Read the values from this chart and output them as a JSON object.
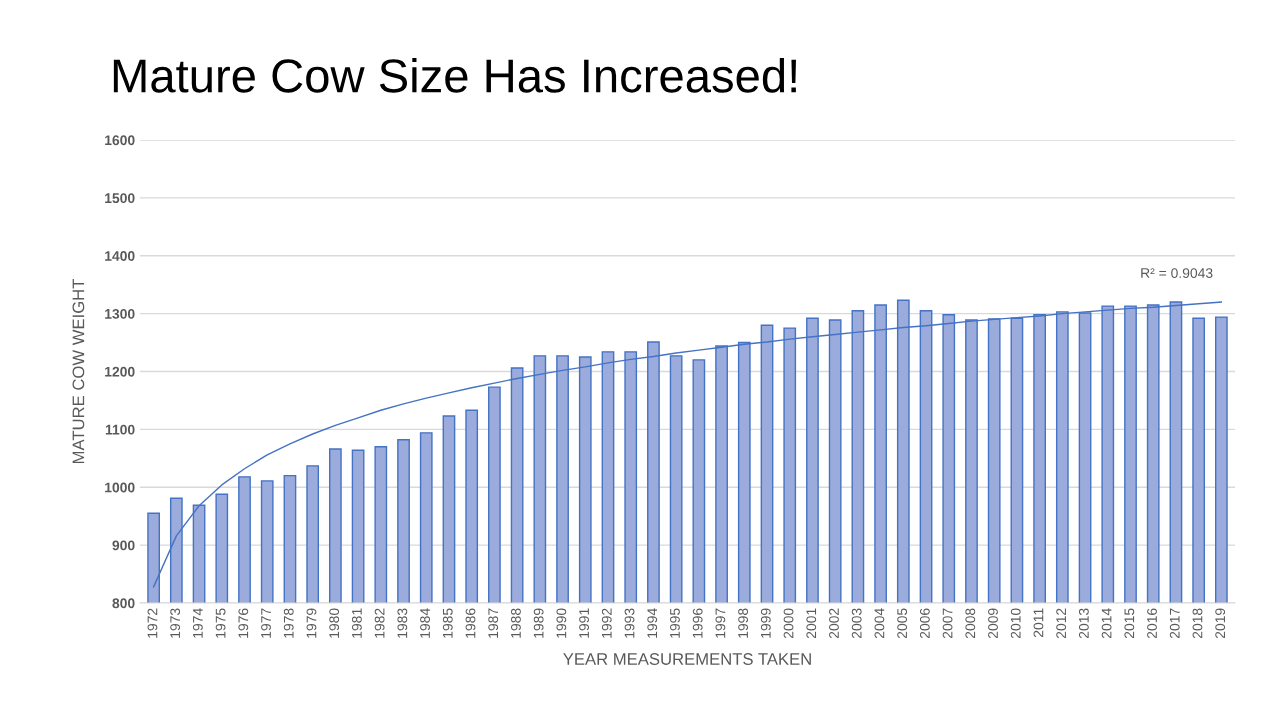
{
  "chart_data": {
    "type": "bar",
    "title": "Mature Cow Size Has Increased!",
    "xlabel": "YEAR MEASUREMENTS TAKEN",
    "ylabel": "MATURE COW WEIGHT",
    "categories": [
      "1972",
      "1973",
      "1974",
      "1975",
      "1976",
      "1977",
      "1978",
      "1979",
      "1980",
      "1981",
      "1982",
      "1983",
      "1984",
      "1985",
      "1986",
      "1987",
      "1988",
      "1989",
      "1990",
      "1991",
      "1992",
      "1993",
      "1994",
      "1995",
      "1996",
      "1997",
      "1998",
      "1999",
      "2000",
      "2001",
      "2002",
      "2003",
      "2004",
      "2005",
      "2006",
      "2007",
      "2008",
      "2009",
      "2010",
      "2011",
      "2012",
      "2013",
      "2014",
      "2015",
      "2016",
      "2017",
      "2018",
      "2019"
    ],
    "series": [
      {
        "color": "#9aabdc",
        "values": [
          955,
          981,
          969,
          988,
          1018,
          1011,
          1020,
          1037,
          1066,
          1064,
          1070,
          1082,
          1094,
          1123,
          1133,
          1173,
          1206,
          1227,
          1227,
          1225,
          1234,
          1234,
          1251,
          1227,
          1220,
          1244,
          1250,
          1280,
          1275,
          1292,
          1289,
          1305,
          1315,
          1323,
          1305,
          1298,
          1289,
          1291,
          1292,
          1298,
          1303,
          1301,
          1313,
          1313,
          1315,
          1320,
          1292,
          1294
        ]
      },
      {
        "type": "line",
        "color": "#4472c4",
        "values": [
          828,
          916,
          968,
          1004,
          1032,
          1056,
          1075,
          1092,
          1107,
          1120,
          1133,
          1144,
          1154,
          1163,
          1172,
          1180,
          1188,
          1195,
          1202,
          1208,
          1215,
          1221,
          1226,
          1232,
          1237,
          1242,
          1247,
          1251,
          1256,
          1260,
          1264,
          1268,
          1272,
          1276,
          1279,
          1283,
          1287,
          1290,
          1293,
          1296,
          1300,
          1303,
          1306,
          1309,
          1311,
          1314,
          1317,
          1320
        ]
      }
    ],
    "annotations": [
      "R² = 0.9043"
    ],
    "ylim": [
      800,
      1600
    ],
    "yticks": [
      800,
      900,
      1000,
      1100,
      1200,
      1300,
      1400,
      1500,
      1600
    ],
    "grid": "y",
    "legend": false,
    "marker": "none",
    "line_style": "solid"
  }
}
